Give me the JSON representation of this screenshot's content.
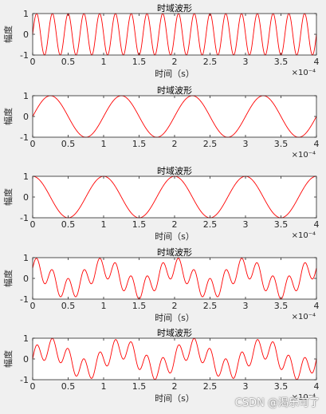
{
  "chart_data": [
    {
      "type": "line",
      "title": "时域波形",
      "xlabel": "时间（s）",
      "ylabel": "幅度",
      "x_exponent_label": "×10⁻⁴",
      "xlim": [
        0,
        4
      ],
      "ylim": [
        -1,
        1
      ],
      "xticks": [
        "0",
        "0.5",
        "1",
        "1.5",
        "2",
        "2.5",
        "3",
        "3.5",
        "4"
      ],
      "yticks": [
        "-1",
        "0",
        "1"
      ],
      "series": [
        {
          "color": "#ff0000",
          "components": [
            {
              "amp": 1.0,
              "cycles": 18,
              "phase": "sin"
            }
          ]
        }
      ]
    },
    {
      "type": "line",
      "title": "时域波形",
      "xlabel": "",
      "ylabel": "幅度",
      "x_exponent_label": "×10⁻⁴",
      "xlim": [
        0,
        4
      ],
      "ylim": [
        -1,
        1
      ],
      "xticks": [
        "0",
        "0.5",
        "1",
        "1.5",
        "2",
        "2.5",
        "3",
        "3.5",
        "4"
      ],
      "yticks": [
        "-1",
        "0",
        "1"
      ],
      "series": [
        {
          "color": "#ff0000",
          "components": [
            {
              "amp": 1.0,
              "cycles": 4,
              "phase": "sin"
            }
          ]
        }
      ]
    },
    {
      "type": "line",
      "title": "时域波形",
      "xlabel": "时间（s）",
      "ylabel": "幅度",
      "x_exponent_label": "×10⁻⁴",
      "xlim": [
        0,
        4
      ],
      "ylim": [
        -1,
        1
      ],
      "xticks": [
        "0",
        "0.5",
        "1",
        "1.5",
        "2",
        "2.5",
        "3",
        "3.5",
        "4"
      ],
      "yticks": [
        "-1",
        "0",
        "1"
      ],
      "series": [
        {
          "color": "#ff0000",
          "components": [
            {
              "amp": 1.0,
              "cycles": 4,
              "phase": "cos"
            }
          ]
        }
      ]
    },
    {
      "type": "line",
      "title": "时域波形",
      "xlabel": "时间（s）",
      "ylabel": "幅度",
      "x_exponent_label": "×10⁻⁴",
      "xlim": [
        0,
        4
      ],
      "ylim": [
        -1,
        1
      ],
      "xticks": [
        "0",
        "0.5",
        "1",
        "1.5",
        "2",
        "2.5",
        "3",
        "3.5",
        "4"
      ],
      "yticks": [
        "-1",
        "0",
        "1"
      ],
      "series": [
        {
          "color": "#ff0000",
          "components": [
            {
              "amp": 0.5,
              "cycles": 18,
              "phase": "sin"
            },
            {
              "amp": 0.5,
              "cycles": 4,
              "phase": "cos"
            }
          ]
        }
      ]
    },
    {
      "type": "line",
      "title": "时域波形",
      "xlabel": "时间（s）",
      "ylabel": "幅度",
      "x_exponent_label": "×10⁻⁴",
      "xlim": [
        0,
        4
      ],
      "ylim": [
        -1,
        1
      ],
      "xticks": [
        "0",
        "0.5",
        "1",
        "1.5",
        "2",
        "2.5",
        "3",
        "3.5",
        "4"
      ],
      "yticks": [
        "-1",
        "0",
        "1"
      ],
      "series": [
        {
          "color": "#ff0000",
          "components": [
            {
              "amp": 0.5,
              "cycles": 18,
              "phase": "sin"
            },
            {
              "amp": 0.5,
              "cycles": 4,
              "phase": "sin"
            }
          ]
        }
      ]
    }
  ],
  "watermark": "CSDN @渴乐可了"
}
